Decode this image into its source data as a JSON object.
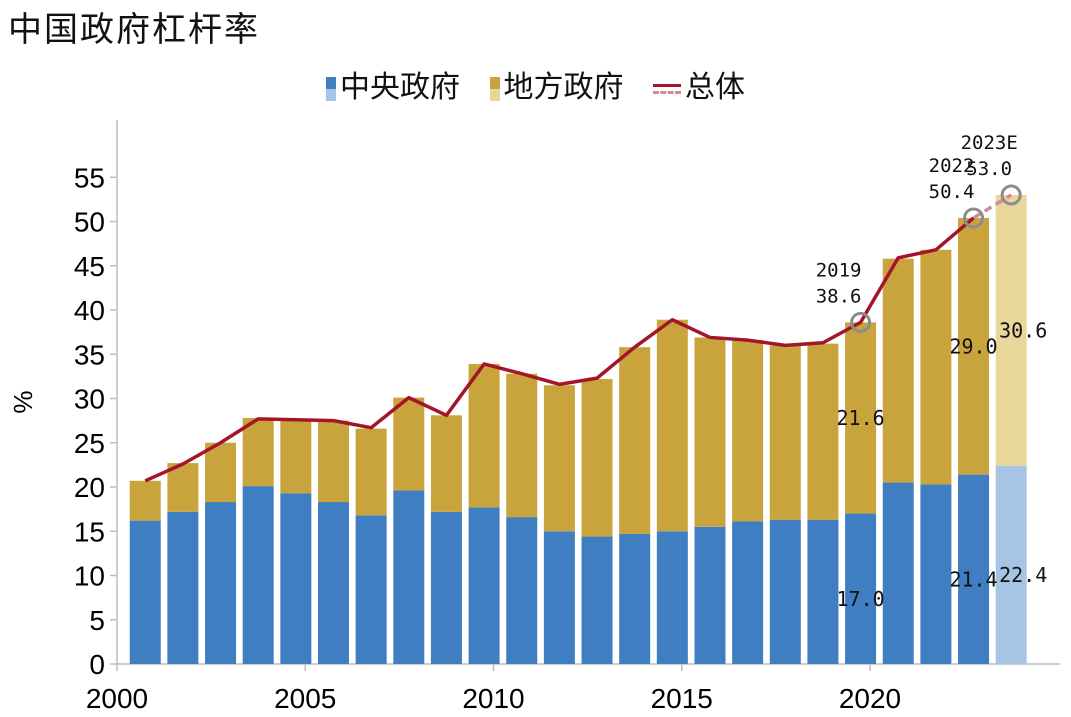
{
  "title": "中国政府杠杆率",
  "chart_data": {
    "type": "bar",
    "stacked": true,
    "ylabel": "%",
    "ylim": [
      0,
      60
    ],
    "yticks": [
      0,
      5,
      10,
      15,
      20,
      25,
      30,
      35,
      40,
      45,
      50,
      55
    ],
    "xticks": [
      2000,
      2005,
      2010,
      2015,
      2020
    ],
    "x": [
      "2000.75",
      "2001.75",
      "2002.75",
      "2003.75",
      "2004.75",
      "2005.75",
      "2006.75",
      "2007.75",
      "2008.75",
      "2009.75",
      "2010.75",
      "2011.75",
      "2012.75",
      "2013.75",
      "2014.75",
      "2015.75",
      "2016.75",
      "2017.75",
      "2018.75",
      "2019.75",
      "2020.75",
      "2021.75",
      "2022.75",
      "2023E"
    ],
    "series": [
      {
        "name": "中央政府",
        "color": "#3f7fc1",
        "forecast_color": "#a6c4e3",
        "values": [
          16.2,
          17.2,
          18.3,
          20.1,
          19.3,
          18.3,
          16.8,
          19.6,
          17.2,
          17.7,
          16.6,
          15.0,
          14.4,
          14.7,
          15.0,
          15.5,
          16.1,
          16.3,
          16.3,
          17.0,
          20.5,
          20.3,
          21.4,
          22.4
        ]
      },
      {
        "name": "地方政府",
        "color": "#c9a43d",
        "forecast_color": "#e8d69b",
        "values": [
          4.5,
          5.5,
          6.7,
          7.7,
          8.2,
          9.2,
          9.8,
          10.5,
          10.9,
          16.2,
          16.2,
          16.5,
          17.8,
          21.1,
          23.9,
          21.4,
          20.5,
          19.7,
          19.9,
          21.6,
          25.3,
          26.5,
          29.0,
          30.6
        ]
      },
      {
        "name": "总体",
        "type": "line",
        "color": "#a3162a",
        "forecast_color": "#d48a9c",
        "values": [
          20.7,
          22.6,
          25.0,
          27.7,
          27.6,
          27.5,
          26.7,
          30.1,
          28.1,
          33.9,
          32.8,
          31.6,
          32.3,
          35.8,
          38.9,
          36.9,
          36.6,
          36.0,
          36.3,
          38.6,
          45.9,
          46.8,
          50.4,
          53.0
        ]
      }
    ],
    "bar_labels": [
      {
        "index": 19,
        "series": 0,
        "text": "17.0"
      },
      {
        "index": 19,
        "series": 1,
        "text": "21.6"
      },
      {
        "index": 22,
        "series": 0,
        "text": "21.4"
      },
      {
        "index": 22,
        "series": 1,
        "text": "29.0"
      },
      {
        "index": 23,
        "series": 0,
        "text": "22.4"
      },
      {
        "index": 23,
        "series": 1,
        "text": "30.6"
      }
    ],
    "annotations": [
      {
        "index": 19,
        "year": "2019",
        "value": "38.6"
      },
      {
        "index": 22,
        "year": "2022",
        "value": "50.4"
      },
      {
        "index": 23,
        "year": "2023E",
        "value": "53.0"
      }
    ]
  }
}
